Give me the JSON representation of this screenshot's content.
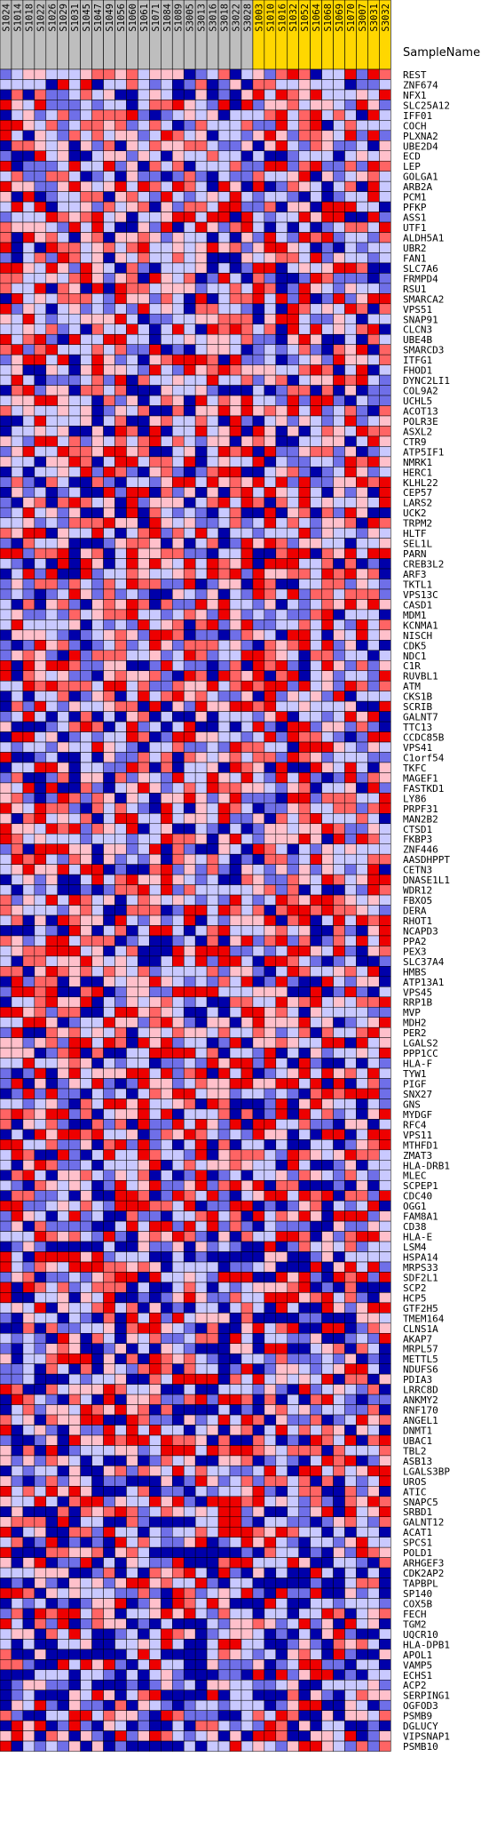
{
  "chart_data": {
    "type": "heatmap",
    "header_label": "SampleName",
    "samples": [
      "S1024",
      "S1014",
      "S1018",
      "S1022",
      "S1026",
      "S1029",
      "S1031",
      "S1045",
      "S1047",
      "S1049",
      "S1056",
      "S1060",
      "S1061",
      "S1071",
      "S1084",
      "S1089",
      "S3005",
      "S3013",
      "S3016",
      "S3018",
      "S3022",
      "S3028",
      "S1003",
      "S1010",
      "S1016",
      "S1032",
      "S1052",
      "S1064",
      "S1068",
      "S1069",
      "S1070",
      "S3007",
      "S3031",
      "S3032"
    ],
    "sample_group": [
      0,
      0,
      0,
      0,
      0,
      0,
      0,
      0,
      0,
      0,
      0,
      0,
      0,
      0,
      0,
      0,
      0,
      0,
      0,
      0,
      0,
      0,
      1,
      1,
      1,
      1,
      1,
      1,
      1,
      1,
      1,
      1,
      1,
      1
    ],
    "group_colors": [
      "#bebebe",
      "#ffd700"
    ],
    "genes": [
      "REST",
      "ZNF674",
      "NFX1",
      "SLC25A12",
      "IFF01",
      "COCH",
      "PLXNA2",
      "UBE2D4",
      "ECD",
      "LEP",
      "GOLGA1",
      "ARB2A",
      "PCM1",
      "PFKP",
      "ASS1",
      "UTF1",
      "ALDH5A1",
      "UBR2",
      "FAN1",
      "SLC7A6",
      "FRMPD4",
      "RSU1",
      "SMARCA2",
      "VPS51",
      "SNAP91",
      "CLCN3",
      "UBE4B",
      "SMARCD3",
      "ITFG1",
      "FHOD1",
      "DYNC2LI1",
      "COL9A2",
      "UCHL5",
      "ACOT13",
      "POLR3E",
      "ASXL2",
      "CTR9",
      "ATP5IF1",
      "NMRK1",
      "HERC1",
      "KLHL22",
      "CEP57",
      "LARS2",
      "UCK2",
      "TRPM2",
      "HLTF",
      "SEL1L",
      "PARN",
      "CREB3L2",
      "ARF3",
      "TKTL1",
      "VPS13C",
      "CASD1",
      "MDM1",
      "KCNMA1",
      "NISCH",
      "CDK5",
      "NDC1",
      "C1R",
      "RUVBL1",
      "ATM",
      "CKS1B",
      "SCRIB",
      "GALNT7",
      "TTC13",
      "CCDC85B",
      "VPS41",
      "C1orf54",
      "TKFC",
      "MAGEF1",
      "FASTKD1",
      "LY86",
      "PRPF31",
      "MAN2B2",
      "CTSD1",
      "FKBP3",
      "ZNF446",
      "AASDHPPT",
      "CETN3",
      "DNASE1L1",
      "WDR12",
      "FBXO5",
      "DERA",
      "RHOT1",
      "NCAPD3",
      "PPA2",
      "PEX3",
      "SLC37A4",
      "HMBS",
      "ATP13A1",
      "VPS45",
      "RRP1B",
      "MVP",
      "MDH2",
      "PER2",
      "LGALS2",
      "PPP1CC",
      "HLA-F",
      "TYW1",
      "PIGF",
      "SNX27",
      "GNS",
      "MYDGF",
      "RFC4",
      "VPS11",
      "MTHFD1",
      "ZMAT3",
      "HLA-DRB1",
      "MLEC",
      "SCPEP1",
      "CDC40",
      "OGG1",
      "FAM8A1",
      "CD38",
      "HLA-E",
      "LSM4",
      "HSPA14",
      "MRPS33",
      "SDF2L1",
      "SCP2",
      "HCP5",
      "GTF2H5",
      "TMEM164",
      "CLNS1A",
      "AKAP7",
      "MRPL57",
      "METTL5",
      "NDUFS6",
      "PDIA3",
      "LRRC8D",
      "ANKMY2",
      "RNF170",
      "ANGEL1",
      "DNMT1",
      "UBAC1",
      "TBL2",
      "ASB13",
      "LGALS3BP",
      "UROS",
      "ATIC",
      "SNAPC5",
      "SRBD1",
      "GALNT12",
      "ACAT1",
      "SPCS1",
      "POLD1",
      "ARHGEF3",
      "CDK2AP2",
      "TAPBPL",
      "SP140",
      "COX5B",
      "FECH",
      "TGM2",
      "UQCR10",
      "HLA-DPB1",
      "APOL1",
      "VAMP5",
      "ECHS1",
      "ACP2",
      "SERPING1",
      "OGFOD3",
      "PSMB9",
      "DGLUCY",
      "VIPSNAP1",
      "PSMB10"
    ],
    "scale_colors": [
      "#0000aa",
      "#6f6fe8",
      "#c9c9ff",
      "#ffc0cb",
      "#ff6464",
      "#ee0000"
    ],
    "scale_legend": "",
    "values": "1233222344342333012402314540225154222205250224212014013044223222011204041124230023200301035254352223255325111212202445321505133423321531023124124445101232302224524524205255324124434124201422241152450242225203214242331254230221353144325151044323031403243344211303521431120310052300233132032242202001222023235011125225130424022241155145114154241144201203110141021142235031234253311353235254254205305014320240523050122440342152123252122102012252252502231423403144255114033055522012225434523022355255052122535500514333215252003150253145202020124425405342034033431322020315215451221450205442342452232353413553201021221024154230324224230003234425132212553253153204102223020155023235540044223245313405324015204100154111014225043050544233312242540153213221052324442153314205024452515015135551320231212152320442210205423254043252122333520112233444035521132022223241204225202520545424052523245052451052255220223233241103530020424514522242411501023320121241043504135525025312034555405112012315332423003203533215215345433322454025022520111241504223225224134023354521045133044240003223100020144040301123355322041302430524352215155102114232232301324004033535343525124104002522230240034224205102313212512302232300305405022523505303024325443215524132424524213303430022330253135225443553400230254505113441301232203354025524425023225021122154530202232515410341014550023410125312141042004102213552534352515113354503120120051550413030452532520313051034045423051333024525404252322325125231300305042121024005034041530022312144453305323112412524213340544355032252024514252022122251322132104223000134430302401535413322022355144503402533441102250045504352552102050530253532525435055522404010025150051224322342545153344254534013144142142544115013305400224413211210125314121003213021542514424441204034103435404115352213021243535323112142344522124315312121145022202522223021215234045135112242521524033321012343155401101432055203252310153410124125314442310434525130201343105144422312541225543204412202505355411330015211014054510253141350432311034334105405435045023122152254544425524114335245455152315414020224013402524534211305132315022204152132234405031533554522322230051252020402034020030222135022125350300012454025120250020251055133141005523012122540155332212515442101552122132253210224112154422055532132500120020311424043234244154312221102255302211540402230543050053252031400140330413215225325215251015143325050041023531242544332134022305134101541430320335313511105514442255325441042421052032542011342244145304523240255225233251130424522242053325451432502300210201332335411325423222122212254430352133353051542140555330331250410032054202132322225452143031213043242010441253222442353352550100451314103213131321250023130025245335321200431143254235520212001014452514222223414020021544132525423024323212152125435543232432221342004440155254240455454432124030543305213125021333504502525450002105302402552024522234230041035431255244401200120403514514014252523445552302400053555112125532510342044233532320025251552055421012001440354342432412222413310254223425005144030032335321214250151005213301554500450133115555222333005015102022453350213234212004422534523244555341440025534320020255342032222112255301225331453103303533352301235150043423240232433242243124042245333134155254053512201503343225505233330145040022555524022150203122325225223430212201121535515205100202110150352333552514505250123525342521503013251015331243355335525050241015151102120243552331221210454555122123104255352234054000150353220214543551402335250222404015052412035403241004140511525315055224110330202053554522301435421215330205502555522411304515120250402202002201345254005102522542215034442154323544220354112022235024233432205200130220452033421324020150120223143214212210432320152351135145350440001030204411203005540154251023552545044155511232421555442501155010134021250153202512004110224524052435305551313041111002525515251410211100311322225434215103435410304225540314553013100000200311303121005014232412252055553512220020100000330013022225214325554434302222011230005035251134011213455052232155500535105451550542412444020024202123334501040005002230325001013531142255534524103232503224524030102202420520053135510322021040525152333040000110003320040411223045532104003524500550143212105304203241124405202211300121510213430013020321000330550023404203022455503040543421002214111213010112042040321454042201501332123552011200021223004255550425232325044035400423335422300200222131051232140054210420503341145155404020452101102413325435340400002010342312211404230433550054110312525403114012534502310311525252202303402524243032010013053354552544304004201054250453040501222331255525455432444042224313143202003014230033401210254501302122030034143252422112520552423553101413201100030153124144240402125524253530002401102122351024400413032252045513225351055545232141043540300040434541243232551300213505235344405022004100002255102211013421450230044152202122425554354220202202401501010524211350125352102213522500044334034200000000104220103154330350115020321150004552225300221042223330014020434520510302005202020010310323135534225102200000100244055403232221141054123251051150031200212010133501305425300052002212221140545524302235352142202202254023452041501433010200021334312513052302330425200120254301233201020351002202002230022325200255220013104342040030000000252000024321203420510034410052535102522003111301255110220000222022102023100011050513550102201331102000101312033221123002222310120003253024500005022000403102433032510311040321012212220135500320141002255243310541110024254003033240535015103201002044212154030220010353043031051354212303055400332501350212130301000002022523213553214145510503020000000431002531252222300220102051040224022222000255412241300222305053002211010145025214210501451005133232212255020053251450210"
  }
}
